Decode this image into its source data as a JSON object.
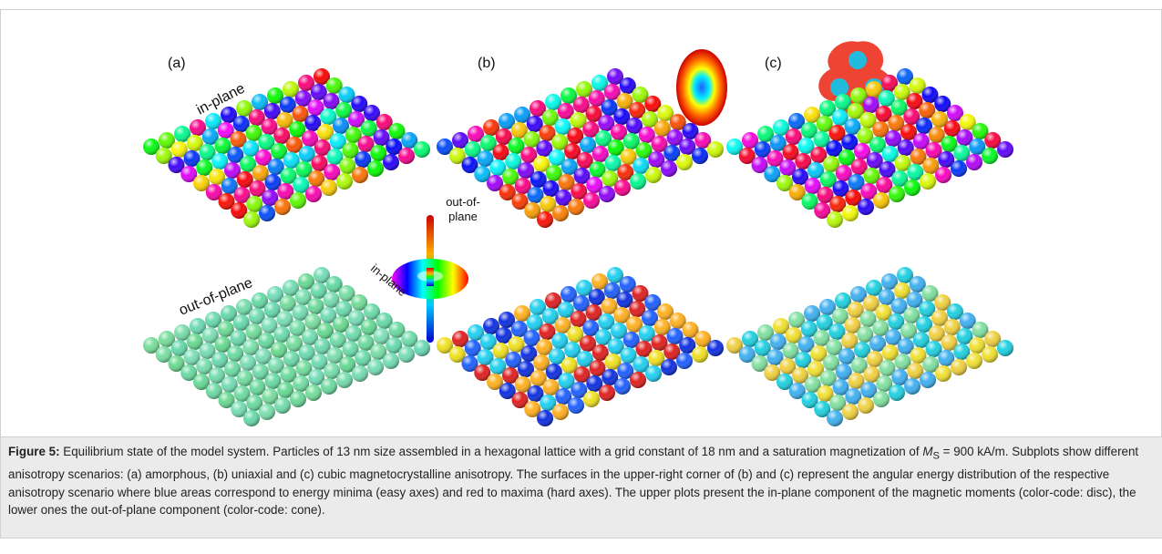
{
  "figure": {
    "panel_labels": [
      "(a)",
      "(b)",
      "(c)"
    ],
    "row_labels": [
      "in-plane",
      "out-of-plane"
    ],
    "legend": {
      "out_of_plane": [
        "out-of-",
        "plane"
      ],
      "in_plane": "in-plane"
    }
  },
  "caption": {
    "label": "Figure 5:",
    "text_before": " Equilibrium state of the model system. Particles of 13 nm size assembled in a hexagonal lattice with a grid constant of 18 nm and a saturation magnetization of ",
    "symbol": "M",
    "subscript": "S",
    "text_after": " = 900 kA/m. Subplots show different anisotropy scenarios: (a) amorphous, (b) uniaxial and (c) cubic magnetocrystalline anisotropy. The surfaces in the upper-right corner of (b) and (c) represent the angular energy distribution of the respective anisotropy scenario where blue areas correspond to energy minima (easy axes) and red to maxima (hard axes). The upper plots present the in-plane component of the magnetic moments (color-code: disc), the lower ones the out-of-plane component (color-code: cone)."
  }
}
